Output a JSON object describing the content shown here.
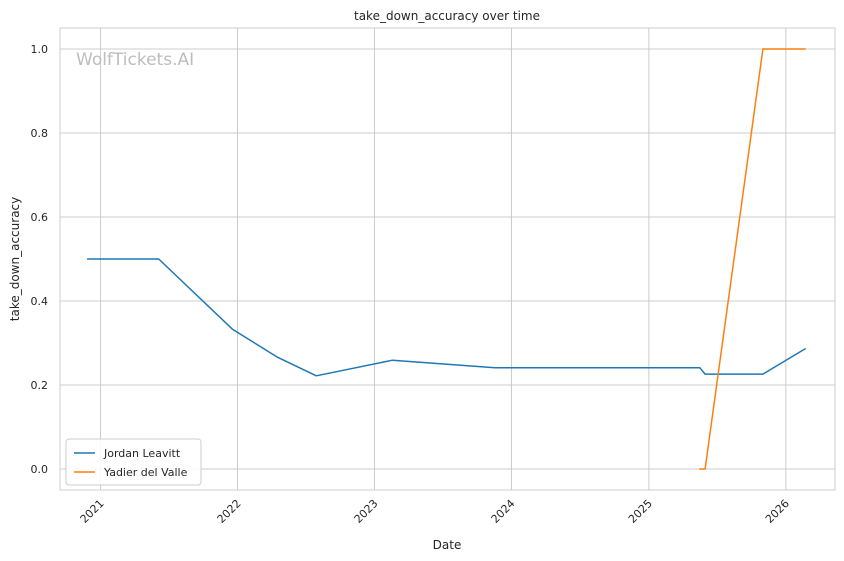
{
  "chart_data": {
    "type": "line",
    "title": "take_down_accuracy over time",
    "xlabel": "Date",
    "ylabel": "take_down_accuracy",
    "watermark": "WolfTickets.AI",
    "xlim": [
      "2020-09-15",
      "2026-05-12"
    ],
    "ylim": [
      -0.05,
      1.05
    ],
    "x_ticks": [
      "2021-01-01",
      "2022-01-01",
      "2023-01-01",
      "2024-01-01",
      "2025-01-01",
      "2026-01-01"
    ],
    "x_tick_labels": [
      "2021",
      "2022",
      "2023",
      "2024",
      "2025",
      "2026"
    ],
    "y_ticks": [
      0.0,
      0.2,
      0.4,
      0.6,
      0.8,
      1.0
    ],
    "y_tick_labels": [
      "0.0",
      "0.2",
      "0.4",
      "0.6",
      "0.8",
      "1.0"
    ],
    "grid": true,
    "legend_position": "lower-left",
    "series": [
      {
        "name": "Jordan Leavitt",
        "color": "#1f77b4",
        "points": [
          {
            "x": "2020-11-28",
            "y": 0.5
          },
          {
            "x": "2021-06-05",
            "y": 0.5
          },
          {
            "x": "2021-12-18",
            "y": 0.333
          },
          {
            "x": "2022-04-16",
            "y": 0.267
          },
          {
            "x": "2022-07-30",
            "y": 0.222
          },
          {
            "x": "2023-02-18",
            "y": 0.259
          },
          {
            "x": "2023-11-18",
            "y": 0.241
          },
          {
            "x": "2025-05-17",
            "y": 0.241
          },
          {
            "x": "2025-05-31",
            "y": 0.226
          },
          {
            "x": "2025-11-01",
            "y": 0.226
          },
          {
            "x": "2026-02-21",
            "y": 0.286
          }
        ]
      },
      {
        "name": "Yadier del Valle",
        "color": "#ff7f0e",
        "points": [
          {
            "x": "2025-05-17",
            "y": 0.0
          },
          {
            "x": "2025-05-31",
            "y": 0.0
          },
          {
            "x": "2025-11-01",
            "y": 1.0
          },
          {
            "x": "2026-02-21",
            "y": 1.0
          }
        ]
      }
    ]
  }
}
